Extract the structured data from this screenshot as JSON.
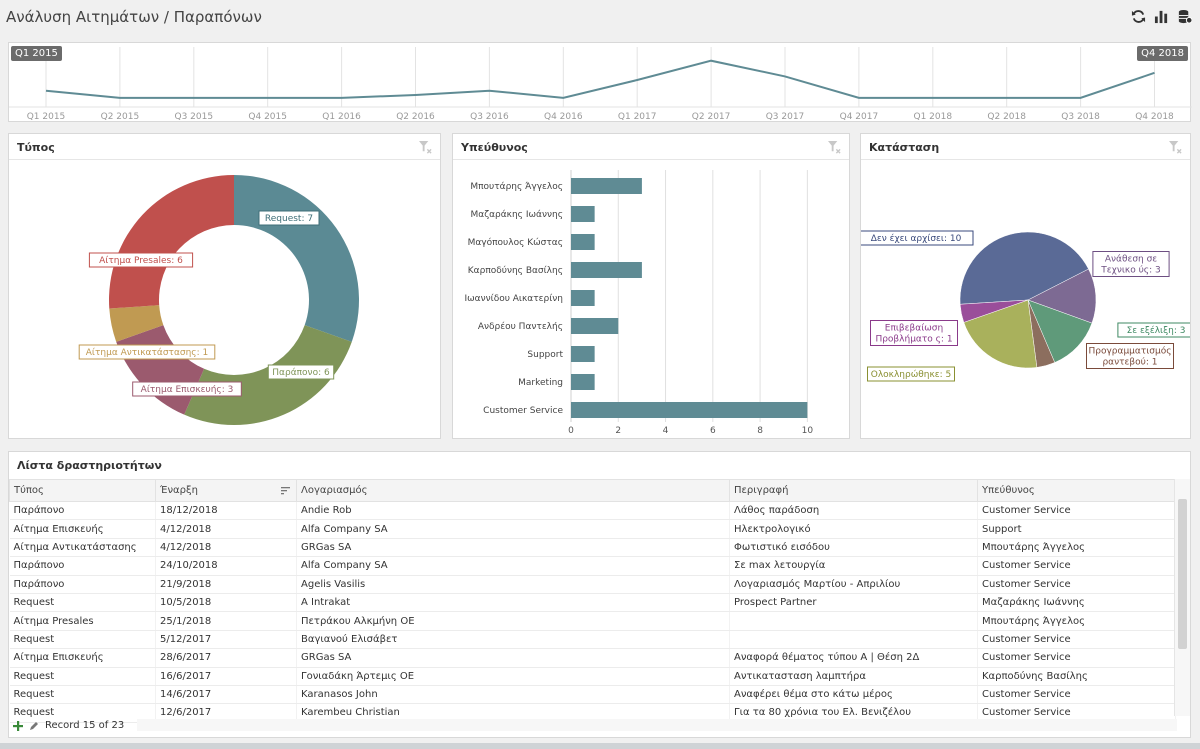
{
  "header": {
    "title": "Ανάλυση Αιτημάτων / Παραπόνων"
  },
  "timeline": {
    "start_tag": "Q1 2015",
    "end_tag": "Q4 2018",
    "quarters": [
      "Q1 2015",
      "Q2 2015",
      "Q3 2015",
      "Q4 2015",
      "Q1 2016",
      "Q2 2016",
      "Q3 2016",
      "Q4 2016",
      "Q1 2017",
      "Q2 2017",
      "Q3 2017",
      "Q4 2017",
      "Q1 2018",
      "Q2 2018",
      "Q3 2018",
      "Q4 2018"
    ],
    "values": [
      2,
      1,
      1,
      1,
      1,
      1.4,
      2,
      1,
      3.5,
      6.2,
      4,
      1,
      1,
      1,
      1,
      4.5
    ]
  },
  "panels": {
    "type": {
      "title": "Τύπος"
    },
    "owner": {
      "title": "Υπεύθυνος"
    },
    "status": {
      "title": "Κατάσταση"
    }
  },
  "chart_data": [
    {
      "type": "pie",
      "categories": [
        "Request",
        "Παράπονο",
        "Αίτημα Επισκευής",
        "Αίτημα Αντικατάστασης",
        "Αίτημα Presales"
      ],
      "values": [
        7,
        6,
        3,
        1,
        6
      ],
      "labels": [
        "Request: 7",
        "Παράπονο: 6",
        "Αίτημα Επισκευής: 3",
        "Αίτημα Αντικατάστασης: 1",
        "Αίτημα Presales: 6"
      ],
      "colors": [
        "#5b8a94",
        "#7f9458",
        "#9b5a6e",
        "#c09a52",
        "#c0504d"
      ]
    },
    {
      "type": "bar",
      "categories": [
        "Μπουτάρης Άγγελος",
        "Μαζαράκης Ιωάννης",
        "Μαγόπουλος Κώστας",
        "Καρποδύνης Βασίλης",
        "Ιωαννίδου Αικατερίνη",
        "Ανδρέου Παντελής",
        "Support",
        "Marketing",
        "Customer Service"
      ],
      "values": [
        3,
        1,
        1,
        3,
        1,
        2,
        1,
        1,
        10
      ],
      "xlim": [
        0,
        11
      ],
      "ticks": [
        0,
        2,
        4,
        6,
        8,
        10
      ],
      "color": "#5f8b94"
    },
    {
      "type": "pie",
      "categories": [
        "Δεν έχει αρχίσει",
        "Ανάθεση σε Τεχνικούς",
        "Σε εξέλιξη",
        "Προγραμματισμός ραντεβού",
        "Ολοκληρώθηκε",
        "Επιβεβαίωση Προβλήματος"
      ],
      "values": [
        10,
        3,
        3,
        1,
        5,
        1
      ],
      "labels": [
        "Δεν έχει αρχίσει: 10",
        "Ανάθεση σε Τεχνικούς: 3",
        "Σε εξέλιξη: 3",
        "Προγραμματισμός ραντεβού: 1",
        "Ολοκληρώθηκε: 5",
        "Επιβεβαίωση Προβλήματος: 1"
      ],
      "colors": [
        "#5a6a96",
        "#7d6a93",
        "#5f9a7a",
        "#8c6e5e",
        "#a9b15c",
        "#9a4e9a"
      ]
    }
  ],
  "activity": {
    "title": "Λίστα δραστηριοτήτων",
    "columns": [
      "Τύπος",
      "Έναρξη",
      "Λογαριασμός",
      "Περιγραφή",
      "Υπεύθυνος"
    ],
    "rows": [
      [
        "Παράπονο",
        "18/12/2018",
        "Andie Rob",
        "Λάθος παράδοση",
        "Customer Service"
      ],
      [
        "Αίτημα Επισκευής",
        "4/12/2018",
        "Alfa Company SA",
        "Ηλεκτρολογικό",
        "Support"
      ],
      [
        "Αίτημα Αντικατάστασης",
        "4/12/2018",
        "GRGas SA",
        "Φωτιστικό εισόδου",
        "Μπουτάρης Άγγελος"
      ],
      [
        "Παράπονο",
        "24/10/2018",
        "Alfa Company SA",
        "Σε max λετουργία",
        "Customer Service"
      ],
      [
        "Παράπονο",
        "21/9/2018",
        "Agelis Vasilis",
        "Λογαριασμός Μαρτίου - Απριλίου",
        "Customer Service"
      ],
      [
        "Request",
        "10/5/2018",
        "A Intrakat",
        "Prospect Partner",
        "Μαζαράκης Ιωάννης"
      ],
      [
        "Αίτημα Presales",
        "25/1/2018",
        "Πετράκου Αλκμήνη ΟΕ",
        "",
        "Μπουτάρης Άγγελος"
      ],
      [
        "Request",
        "5/12/2017",
        "Βαγιανού Ελισάβετ",
        "",
        "Customer Service"
      ],
      [
        "Αίτημα Επισκευής",
        "28/6/2017",
        "GRGas SA",
        "Αναφορά θέματος τύπου Α | Θέση 2Δ",
        "Customer Service"
      ],
      [
        "Request",
        "16/6/2017",
        "Γονιαδάκη Άρτεμις ΟΕ",
        "Αντικατασταση λαμπτήρα",
        "Καρποδύνης Βασίλης"
      ],
      [
        "Request",
        "14/6/2017",
        "Karanasos John",
        "Αναφέρει θέμα στο κάτω μέρος",
        "Customer Service"
      ],
      [
        "Request",
        "12/6/2017",
        "Karembeu Christian",
        "Για τα 80 χρόνια του Ελ. Βενιζέλου",
        "Customer Service"
      ]
    ],
    "record_text": "Record 15 of 23"
  }
}
